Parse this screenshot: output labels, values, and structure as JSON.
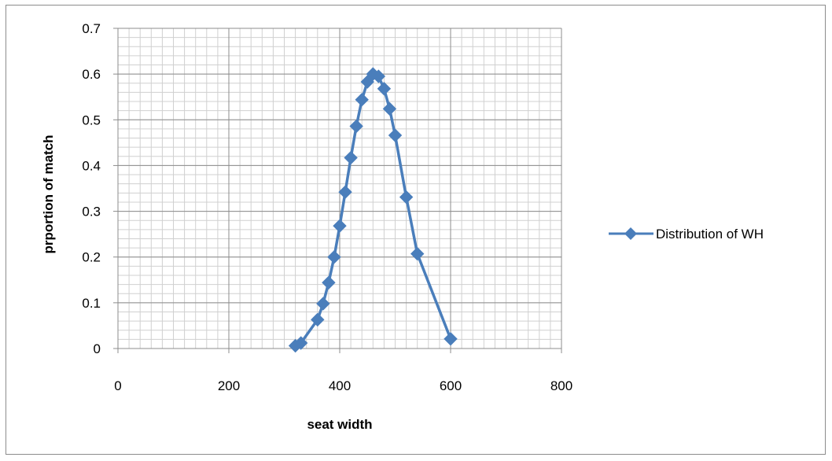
{
  "chart_data": {
    "type": "scatter",
    "title": "",
    "xlabel": "seat width",
    "ylabel": "prportion of match",
    "xlim": [
      0,
      800
    ],
    "ylim": [
      0,
      0.7
    ],
    "x_ticks": [
      "0",
      "200",
      "400",
      "600",
      "800"
    ],
    "y_ticks": [
      "0",
      "0.1",
      "0.2",
      "0.3",
      "0.4",
      "0.5",
      "0.6",
      "0.7"
    ],
    "grid": true,
    "legend_position": "right",
    "series": [
      {
        "name": "Distribution of WH",
        "color": "#4a7ebb",
        "marker": "diamond",
        "x": [
          320,
          330,
          360,
          370,
          380,
          390,
          400,
          410,
          420,
          430,
          440,
          450,
          460,
          470,
          480,
          490,
          500,
          520,
          540,
          600
        ],
        "y": [
          0.006,
          0.012,
          0.063,
          0.098,
          0.144,
          0.2,
          0.268,
          0.342,
          0.417,
          0.486,
          0.544,
          0.583,
          0.6,
          0.595,
          0.568,
          0.524,
          0.466,
          0.331,
          0.207,
          0.021
        ]
      }
    ]
  }
}
